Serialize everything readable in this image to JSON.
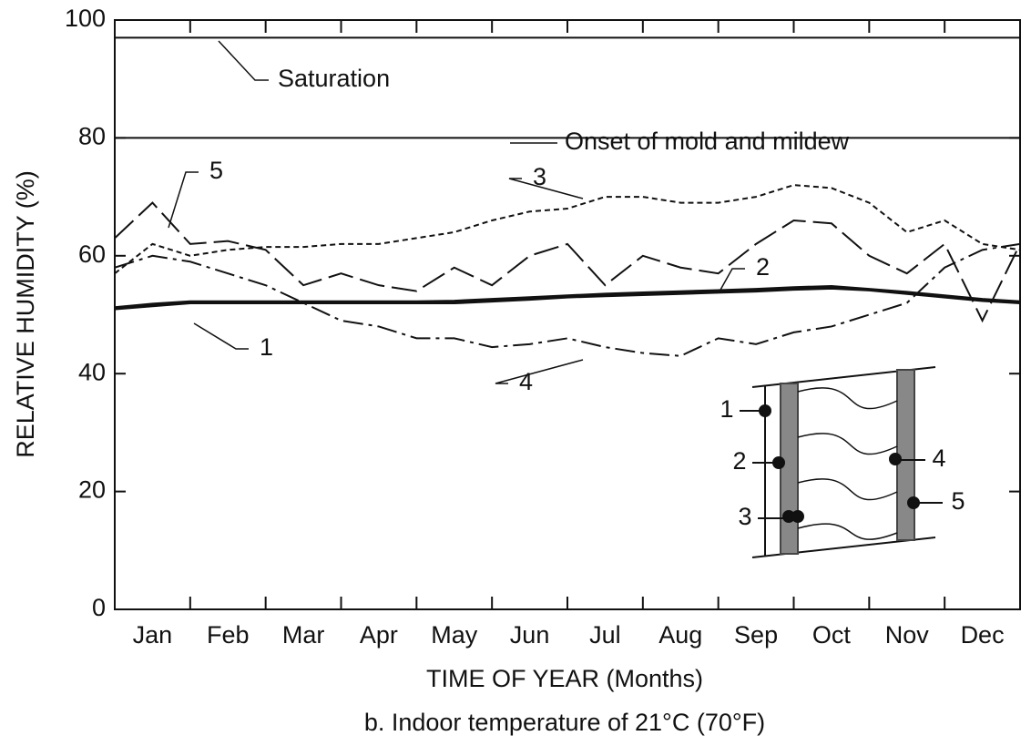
{
  "chart_data": {
    "type": "line",
    "x_label": "TIME OF YEAR (Months)",
    "y_label": "RELATIVE HUMIDITY (%)",
    "caption": "b. Indoor temperature of 21°C (70°F)",
    "x": [
      0,
      0.5,
      1,
      1.5,
      2,
      2.5,
      3,
      3.5,
      4,
      4.5,
      5,
      5.5,
      6,
      6.5,
      7,
      7.5,
      8,
      8.5,
      9,
      9.5,
      10,
      10.5,
      11,
      11.5,
      12
    ],
    "xlim": [
      0,
      12
    ],
    "xticks": [
      {
        "value": 0.5,
        "label": "Jan"
      },
      {
        "value": 1.5,
        "label": "Feb"
      },
      {
        "value": 2.5,
        "label": "Mar"
      },
      {
        "value": 3.5,
        "label": "Apr"
      },
      {
        "value": 4.5,
        "label": "May"
      },
      {
        "value": 5.5,
        "label": "Jun"
      },
      {
        "value": 6.5,
        "label": "Jul"
      },
      {
        "value": 7.5,
        "label": "Aug"
      },
      {
        "value": 8.5,
        "label": "Sep"
      },
      {
        "value": 9.5,
        "label": "Oct"
      },
      {
        "value": 10.5,
        "label": "Nov"
      },
      {
        "value": 11.5,
        "label": "Dec"
      }
    ],
    "ylim": [
      0,
      100
    ],
    "yticks": [
      0,
      20,
      40,
      60,
      80,
      100
    ],
    "reference_lines": [
      {
        "label": "Saturation",
        "value": 97
      },
      {
        "label": "Onset of mold and mildew",
        "value": 80
      }
    ],
    "series": [
      {
        "name": "1",
        "color": "#111111",
        "style": "solid",
        "values": [
          51,
          51.5,
          52,
          52,
          52,
          52,
          52,
          52,
          52,
          52,
          52.3,
          52.6,
          53,
          53.2,
          53.4,
          53.6,
          53.8,
          54,
          54.3,
          54.5,
          54.2,
          53.6,
          53,
          52.4,
          52
        ]
      },
      {
        "name": "2",
        "color": "#111111",
        "style": "solid",
        "values": [
          51.2,
          51.8,
          52.2,
          52.2,
          52.2,
          52.2,
          52.2,
          52.2,
          52.2,
          52.3,
          52.6,
          52.9,
          53.2,
          53.5,
          53.7,
          53.9,
          54.1,
          54.3,
          54.6,
          54.8,
          54.3,
          53.8,
          53.2,
          52.6,
          52.2
        ]
      },
      {
        "name": "3",
        "color": "#111111",
        "style": "dotted",
        "values": [
          57,
          62,
          60,
          61,
          61.5,
          61.5,
          62,
          62,
          63,
          64,
          66,
          67.5,
          68,
          70,
          70,
          69,
          69,
          70,
          72,
          71.5,
          69,
          64,
          66,
          62,
          61
        ]
      },
      {
        "name": "4",
        "color": "#111111",
        "style": "dashdot",
        "values": [
          58,
          60,
          59,
          57,
          55,
          52,
          49,
          48,
          46,
          46,
          44.5,
          45,
          46,
          44.5,
          43.5,
          43,
          46,
          45,
          47,
          48,
          50,
          52,
          58,
          61,
          62
        ]
      },
      {
        "name": "5",
        "color": "#111111",
        "style": "longdash",
        "values": [
          63,
          69,
          62,
          62.5,
          61,
          55,
          57,
          55,
          54,
          58,
          55,
          60,
          62,
          55,
          60,
          58,
          57,
          62,
          66,
          65.5,
          60,
          57,
          62,
          49,
          62
        ]
      }
    ]
  }
}
